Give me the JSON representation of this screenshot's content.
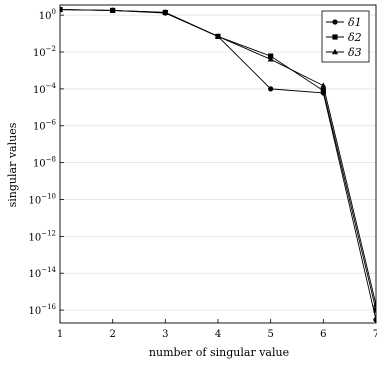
{
  "chart_data": {
    "type": "line",
    "xlabel": "number of singular value",
    "ylabel": "singular values",
    "x": [
      1,
      2,
      3,
      4,
      5,
      6,
      7
    ],
    "xlim": [
      1,
      7
    ],
    "ylim_log10": [
      -16.7,
      0.55
    ],
    "yscale": "log",
    "grid": "horizontal",
    "legend_position": "top-right",
    "x_ticks": [
      "1",
      "2",
      "3",
      "4",
      "5",
      "6",
      "7"
    ],
    "y_ticks": [
      {
        "base": "10",
        "exp": "0"
      },
      {
        "base": "10",
        "exp": "−2"
      },
      {
        "base": "10",
        "exp": "−4"
      },
      {
        "base": "10",
        "exp": "−6"
      },
      {
        "base": "10",
        "exp": "−8"
      },
      {
        "base": "10",
        "exp": "−10"
      },
      {
        "base": "10",
        "exp": "−12"
      },
      {
        "base": "10",
        "exp": "−14"
      },
      {
        "base": "10",
        "exp": "−16"
      }
    ],
    "series": [
      {
        "name": "δ1",
        "marker": "circle",
        "values": [
          2.0,
          1.8,
          1.3,
          0.07,
          0.0001,
          6e-05,
          3e-17
        ]
      },
      {
        "name": "δ2",
        "marker": "square",
        "values": [
          2.0,
          1.8,
          1.4,
          0.07,
          0.006,
          8e-05,
          1e-16
        ]
      },
      {
        "name": "δ3",
        "marker": "triangle",
        "values": [
          2.0,
          1.8,
          1.4,
          0.07,
          0.004,
          0.00015,
          2e-16
        ]
      }
    ],
    "colors": {
      "line": "#000000",
      "grid": "#e0e0e0"
    }
  }
}
